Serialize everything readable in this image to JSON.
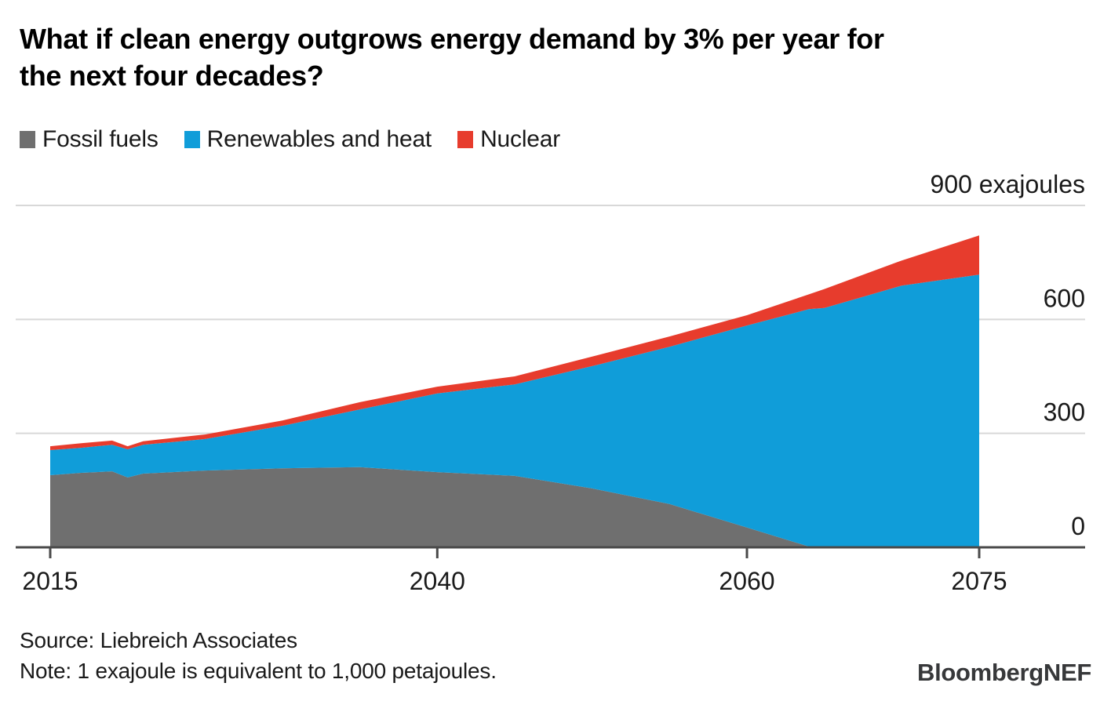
{
  "title": {
    "line1": "What if clean energy outgrows energy demand by 3% per year for",
    "line2": "the next four decades?"
  },
  "legend": [
    {
      "label": "Fossil fuels",
      "color": "#6f6f6f"
    },
    {
      "label": "Renewables and heat",
      "color": "#109dd9"
    },
    {
      "label": "Nuclear",
      "color": "#e73c2d"
    }
  ],
  "chart_data": {
    "type": "area",
    "stacked": true,
    "unit": "exajoules",
    "title": "What if clean energy outgrows energy demand by 3% per year for the next four decades?",
    "x": [
      2015,
      2017,
      2019,
      2020,
      2021,
      2025,
      2030,
      2035,
      2040,
      2045,
      2050,
      2055,
      2060,
      2064,
      2065,
      2070,
      2075
    ],
    "series": [
      {
        "name": "Fossil fuels",
        "color": "#6f6f6f",
        "values": [
          190,
          196,
          200,
          184,
          194,
          202,
          208,
          211,
          198,
          188,
          155,
          114,
          52,
          2,
          0,
          0,
          0
        ]
      },
      {
        "name": "Renewables and heat",
        "color": "#109dd9",
        "values": [
          66,
          66,
          70,
          74,
          76,
          83,
          112,
          152,
          207,
          241,
          322,
          414,
          532,
          625,
          630,
          689,
          718
        ]
      },
      {
        "name": "Nuclear",
        "color": "#e73c2d",
        "values": [
          10,
          12,
          11,
          8,
          9,
          12,
          14,
          19,
          18,
          21,
          25,
          27,
          27,
          39,
          50,
          66,
          103
        ]
      }
    ],
    "xlim": [
      2015,
      2075
    ],
    "ylim": [
      0,
      900
    ],
    "x_ticks": [
      2015,
      2040,
      2060,
      2075
    ],
    "x_tick_labels": [
      "2015",
      "2040",
      "2060",
      "2075"
    ],
    "y_ticks": [
      0,
      300,
      600,
      900
    ],
    "y_tick_labels": [
      "0",
      "300",
      "600",
      "900 exajoules"
    ],
    "grid": "horizontal",
    "grid_color": "#d8d8d8",
    "axis_color": "#4a4a4a",
    "label_color": "#1a1a1a",
    "legend_position": "top"
  },
  "footer": {
    "source": "Source: Liebreich Associates",
    "note": "Note: 1 exajoule is equivalent to 1,000 petajoules.",
    "brand": "BloombergNEF"
  }
}
